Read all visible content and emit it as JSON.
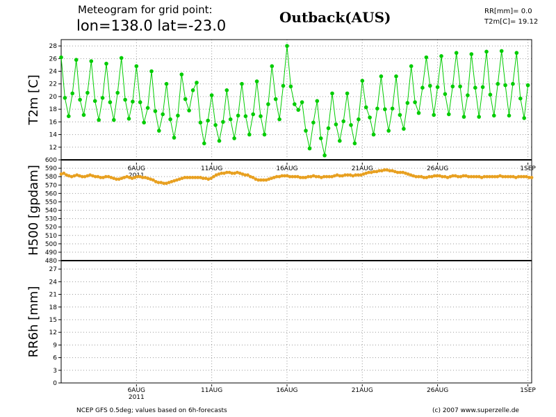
{
  "header": {
    "title_line1": "Meteogram for grid point:",
    "title_line2": "lon=138.0  lat=-23.0",
    "location": "Outback(AUS)",
    "rr_readout": "RR[mm]= 0.0",
    "t2m_readout": "T2m[C]= 19.12"
  },
  "footer": {
    "source": "NCEP GFS 0.5deg; values based on 6h-forecasts",
    "credit": "(c) 2007 www.superzelle.de"
  },
  "colors": {
    "t2m": "#00cc00",
    "h500": "#e8a020",
    "grid": "#999999",
    "axis": "#000000"
  },
  "chart_data": [
    {
      "type": "line",
      "name": "t2m-panel",
      "ylabel": "T2m [C]",
      "ylim": [
        10,
        29
      ],
      "yticks": [
        12,
        14,
        16,
        18,
        20,
        22,
        24,
        26,
        28
      ],
      "x_range_days": [
        1.0,
        32.25
      ],
      "xticks": [
        {
          "day": 6,
          "label": "6AUG",
          "sublabel": "2011"
        },
        {
          "day": 11,
          "label": "11AUG"
        },
        {
          "day": 16,
          "label": "16AUG"
        },
        {
          "day": 21,
          "label": "21AUG"
        },
        {
          "day": 26,
          "label": "26AUG"
        },
        {
          "day": 32,
          "label": "1SEP"
        }
      ],
      "x_step_days": 0.25,
      "series": [
        {
          "values": [
            26.2,
            19.8,
            16.9,
            20.5,
            25.8,
            19.5,
            17.1,
            20.6,
            25.6,
            19.3,
            16.3,
            19.8,
            25.2,
            19.1,
            16.3,
            20.6,
            26.1,
            19.5,
            16.5,
            19.2,
            24.8,
            19.1,
            15.9,
            18.2,
            24.0,
            17.7,
            14.6,
            17.2,
            22.0,
            16.4,
            13.5,
            17.0,
            23.5,
            19.6,
            17.8,
            21.0,
            22.2,
            15.9,
            12.6,
            16.2,
            20.2,
            15.5,
            13.0,
            16.0,
            21.0,
            16.4,
            13.4,
            17.0,
            22.0,
            16.9,
            14.0,
            17.2,
            22.4,
            16.9,
            14.0,
            18.8,
            24.8,
            19.6,
            16.4,
            21.7,
            28.0,
            21.6,
            18.8,
            17.9,
            19.1,
            14.6,
            11.8,
            15.9,
            19.3,
            13.4,
            10.7,
            15.0,
            20.5,
            15.6,
            13.0,
            16.1,
            20.5,
            15.5,
            12.6,
            16.4,
            22.5,
            18.3,
            16.7,
            14.0,
            18.1,
            23.2,
            18.0,
            14.6,
            18.1,
            23.2,
            17.1,
            14.9,
            19.0,
            24.8,
            19.1,
            17.4,
            21.4,
            26.2,
            21.7,
            17.1,
            21.5,
            26.4,
            20.4,
            17.2,
            21.6,
            26.9,
            21.6,
            16.8,
            20.2,
            26.7,
            21.4,
            16.8,
            21.5,
            27.1,
            20.3,
            17.0,
            22.0,
            27.2,
            21.8,
            17.0,
            22.0,
            26.9,
            19.7,
            16.6,
            21.8
          ]
        }
      ]
    },
    {
      "type": "line",
      "name": "h500-panel",
      "ylabel": "H500 [gpdam]",
      "ylim": [
        480,
        600
      ],
      "yticks": [
        480,
        490,
        500,
        510,
        520,
        530,
        540,
        550,
        560,
        570,
        580,
        590,
        600
      ],
      "x_step_days": 0.25,
      "series": [
        {
          "values": [
            583,
            584,
            582,
            581,
            580,
            581,
            582,
            581,
            580,
            580,
            581,
            582,
            581,
            580,
            580,
            579,
            579,
            580,
            580,
            579,
            578,
            577,
            577,
            578,
            579,
            580,
            579,
            578,
            579,
            580,
            580,
            579,
            579,
            578,
            577,
            576,
            574,
            573,
            573,
            572,
            572,
            573,
            574,
            575,
            576,
            577,
            578,
            579,
            579,
            579,
            579,
            579,
            579,
            579,
            578,
            578,
            577,
            578,
            580,
            582,
            583,
            584,
            584,
            585,
            585,
            584,
            584,
            585,
            584,
            583,
            582,
            582,
            580,
            579,
            577,
            576,
            576,
            576,
            576,
            577,
            578,
            579,
            580,
            580,
            581,
            581,
            581,
            580,
            580,
            580,
            580,
            579,
            579,
            579,
            580,
            580,
            581,
            580,
            580,
            579,
            580,
            580,
            580,
            580,
            581,
            582,
            581,
            581,
            582,
            582,
            582,
            581,
            582,
            582,
            582,
            583,
            584,
            585,
            585,
            586,
            586,
            587,
            587,
            588,
            588,
            587,
            587,
            586,
            585,
            585,
            585,
            584,
            583,
            582,
            581,
            580,
            580,
            580,
            579,
            579,
            580,
            580,
            581,
            581,
            581,
            580,
            580,
            579,
            580,
            581,
            581,
            580,
            580,
            581,
            581,
            580,
            580,
            580,
            580,
            580,
            579,
            580,
            580,
            580,
            580,
            580,
            580,
            581,
            580,
            580,
            580,
            580,
            580,
            579,
            580,
            580,
            580,
            580,
            579,
            579
          ]
        }
      ]
    },
    {
      "type": "bar",
      "name": "rr6h-panel",
      "ylabel": "RR6h [mm]",
      "ylim": [
        0,
        29
      ],
      "yticks": [
        0,
        3,
        6,
        9,
        12,
        15,
        18,
        21,
        24,
        27
      ],
      "xticks": [
        {
          "day": 6,
          "label": "6AUG",
          "sublabel": "2011"
        },
        {
          "day": 11,
          "label": "11AUG"
        },
        {
          "day": 16,
          "label": "16AUG"
        },
        {
          "day": 21,
          "label": "21AUG"
        },
        {
          "day": 26,
          "label": "26AUG"
        },
        {
          "day": 32,
          "label": "1SEP"
        }
      ],
      "series": [
        {
          "values": []
        }
      ]
    }
  ]
}
